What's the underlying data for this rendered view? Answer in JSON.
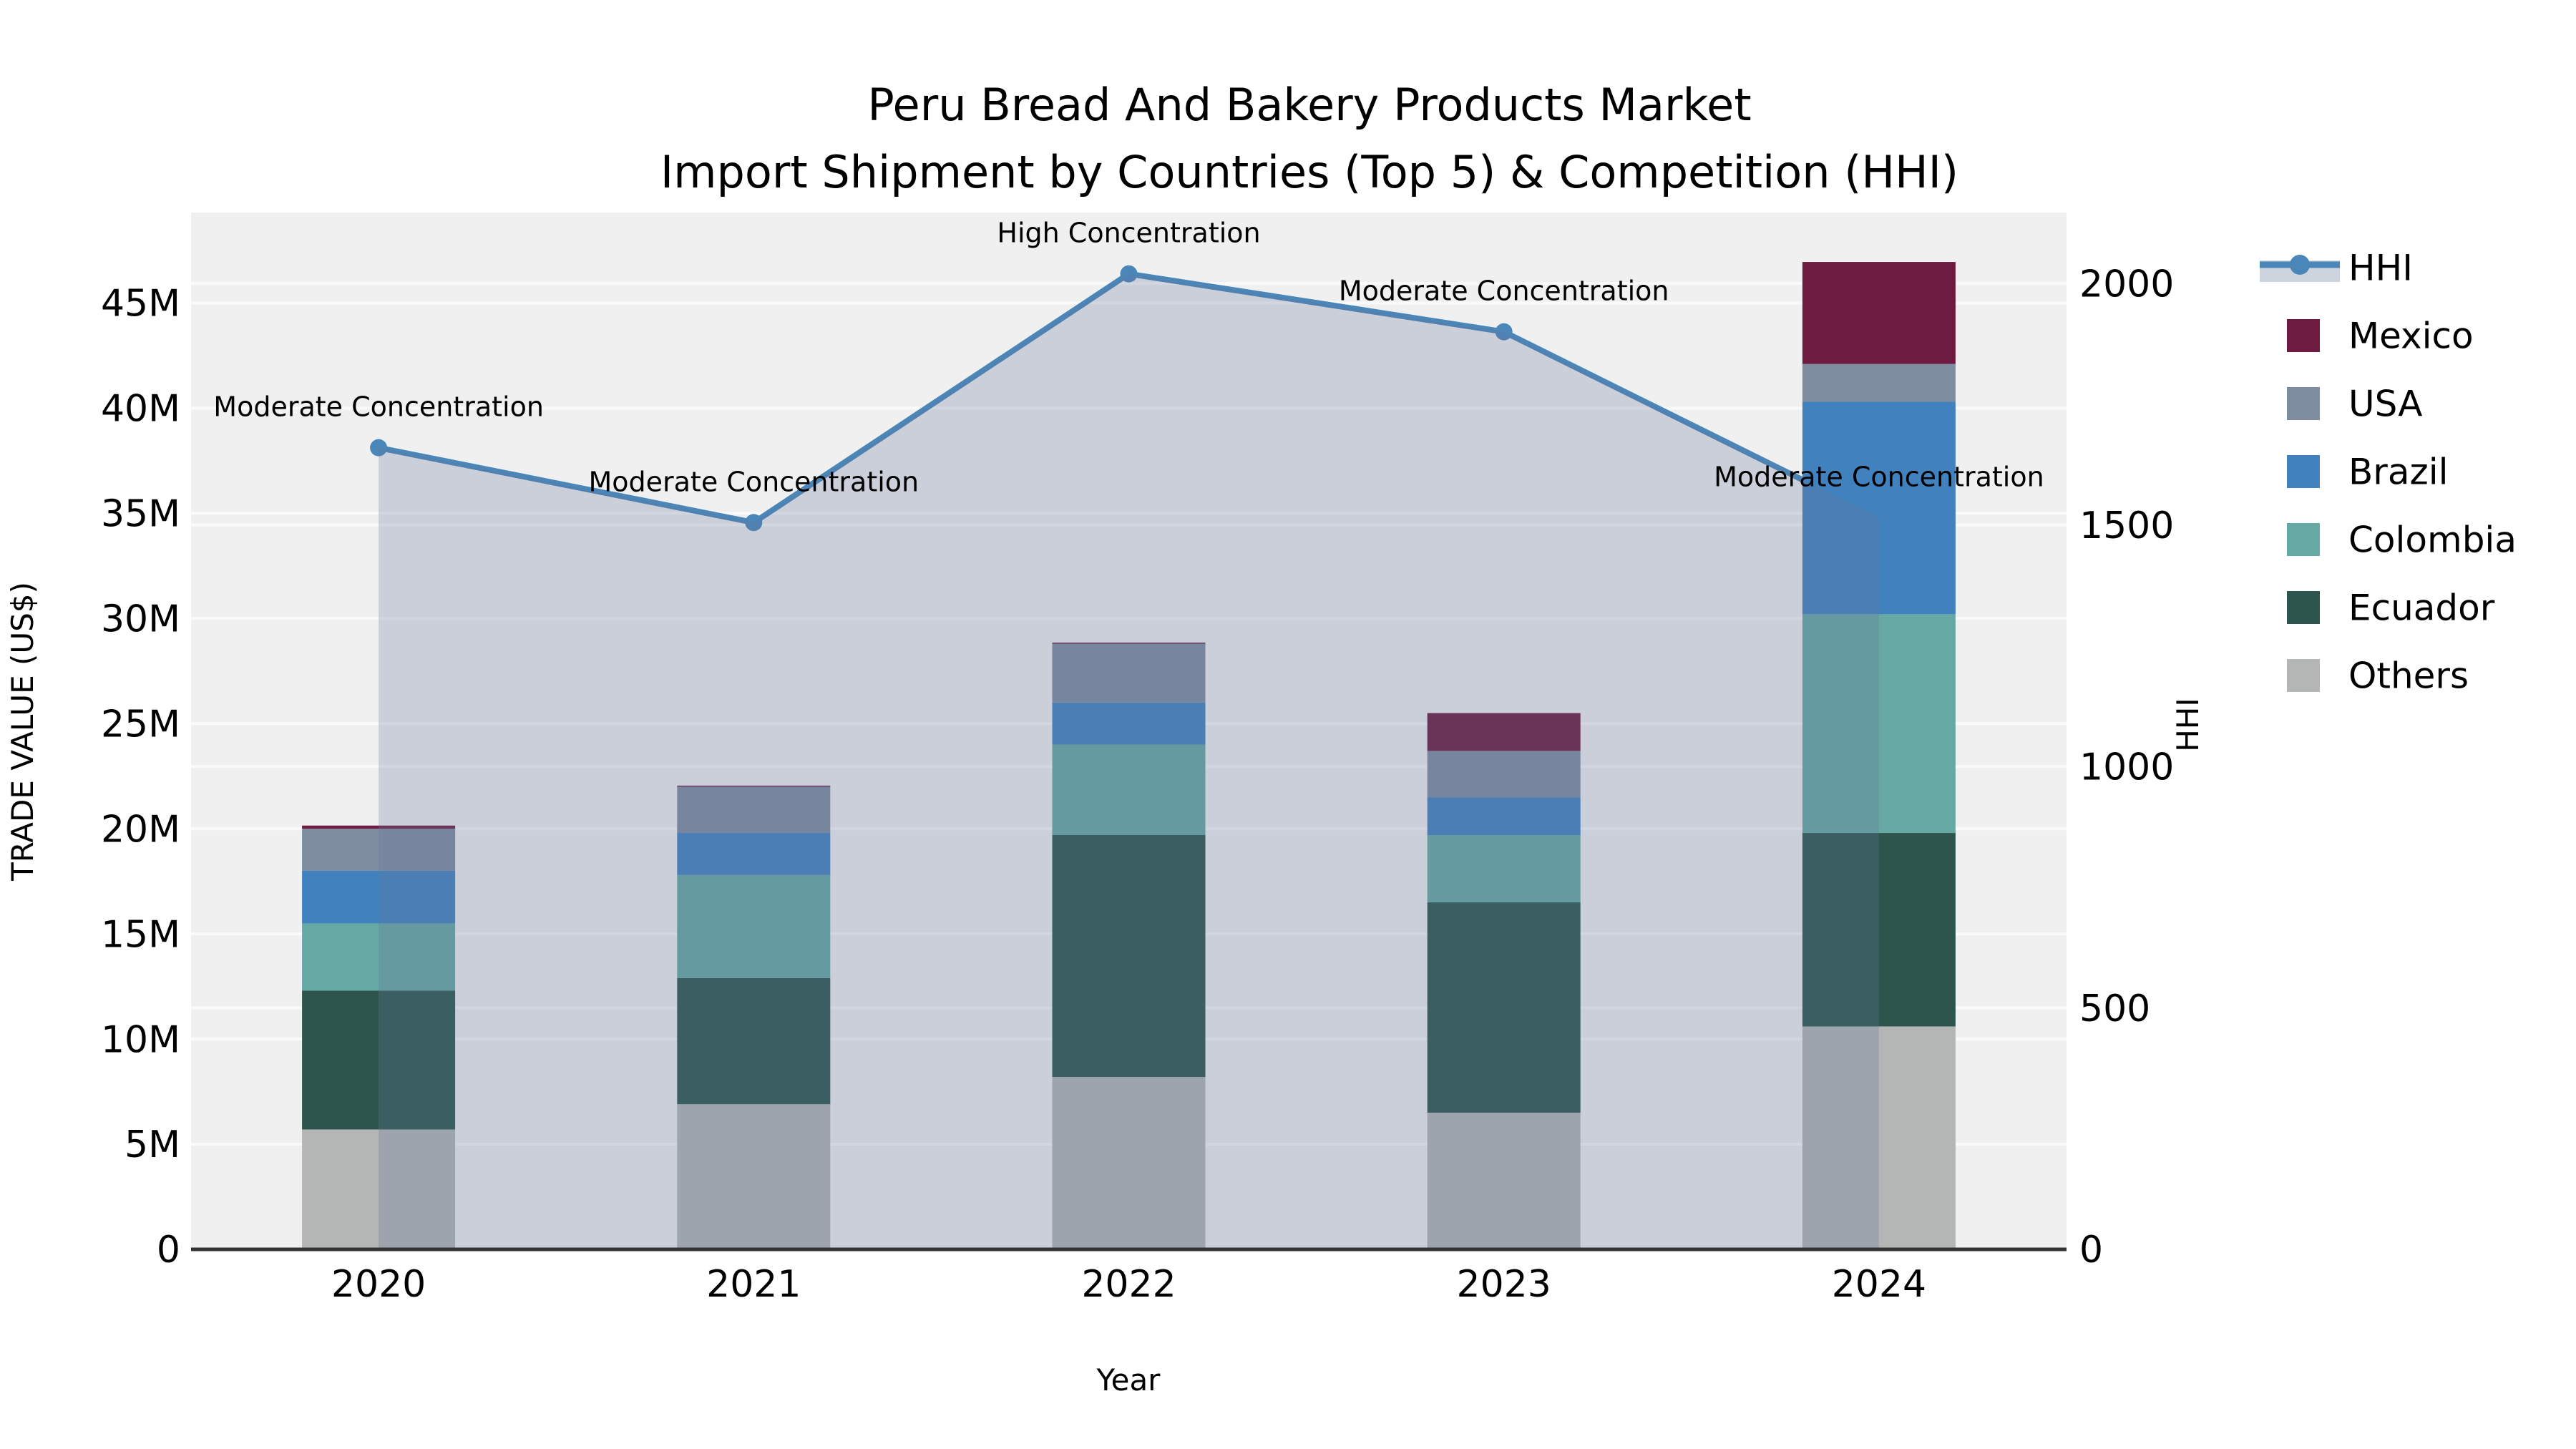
{
  "title": {
    "line1": "Peru Bread And Bakery Products Market",
    "line2": "Import Shipment by Countries (Top 5) & Competition (HHI)"
  },
  "axes": {
    "x_title": "Year",
    "y_left_title": "TRADE VALUE (US$)",
    "y_right_title": "HHI"
  },
  "legend": {
    "items": [
      {
        "id": "hhi",
        "label": "HHI",
        "type": "line"
      },
      {
        "id": "Mexico",
        "label": "Mexico",
        "type": "swatch"
      },
      {
        "id": "USA",
        "label": "USA",
        "type": "swatch"
      },
      {
        "id": "Brazil",
        "label": "Brazil",
        "type": "swatch"
      },
      {
        "id": "Colombia",
        "label": "Colombia",
        "type": "swatch"
      },
      {
        "id": "Ecuador",
        "label": "Ecuador",
        "type": "swatch"
      },
      {
        "id": "Others",
        "label": "Others",
        "type": "swatch"
      }
    ]
  },
  "colors": {
    "hhi_line": "#4a86b8",
    "hhi_area_fill": "#64789a",
    "hhi_area_opacity": 0.27,
    "legend_band": "#ccd4de",
    "plot_bg": "#f0f0f0",
    "grid": "#fafafa",
    "axis_line": "#333333",
    "Mexico": "#6d1b40",
    "USA": "#7f8da0",
    "Brazil": "#4181bd",
    "Colombia": "#66a8a3",
    "Ecuador": "#2d554e",
    "Others": "#b4b6b5"
  },
  "chart_data": {
    "type": "bar",
    "subtype": "stacked-bars-with-line-overlay",
    "categories": [
      "2020",
      "2021",
      "2022",
      "2023",
      "2024"
    ],
    "value_unit": "millions of US$",
    "series": [
      {
        "name": "Others",
        "values": [
          5.7,
          6.9,
          8.2,
          6.5,
          10.6
        ]
      },
      {
        "name": "Ecuador",
        "values": [
          6.6,
          6.0,
          11.5,
          10.0,
          9.2
        ]
      },
      {
        "name": "Colombia",
        "values": [
          3.2,
          4.9,
          4.3,
          3.2,
          10.4
        ]
      },
      {
        "name": "Brazil",
        "values": [
          2.5,
          2.0,
          2.0,
          1.8,
          10.1
        ]
      },
      {
        "name": "USA",
        "values": [
          2.0,
          2.2,
          2.8,
          2.2,
          1.8
        ]
      },
      {
        "name": "Mexico",
        "values": [
          0.15,
          0.05,
          0.05,
          1.8,
          4.85
        ]
      }
    ],
    "hhi": {
      "name": "HHI",
      "values": [
        1660,
        1505,
        2020,
        1900,
        1515
      ],
      "annotations": [
        "Moderate Concentration",
        "Moderate Concentration",
        "High Concentration",
        "Moderate Concentration",
        "Moderate Concentration"
      ]
    },
    "y_left": {
      "label": "TRADE VALUE (US$)",
      "tick_values": [
        0,
        5,
        10,
        15,
        20,
        25,
        30,
        35,
        40,
        45
      ],
      "tick_labels": [
        "0",
        "5M",
        "10M",
        "15M",
        "20M",
        "25M",
        "30M",
        "35M",
        "40M",
        "45M"
      ],
      "max": 49.3
    },
    "y_right": {
      "label": "HHI",
      "tick_values": [
        0,
        500,
        1000,
        1500,
        2000
      ],
      "tick_labels": [
        "0",
        "500",
        "1000",
        "1500",
        "2000"
      ],
      "max": 2147
    },
    "xlabel": "Year",
    "grid": true,
    "legend_position": "right-outside"
  }
}
